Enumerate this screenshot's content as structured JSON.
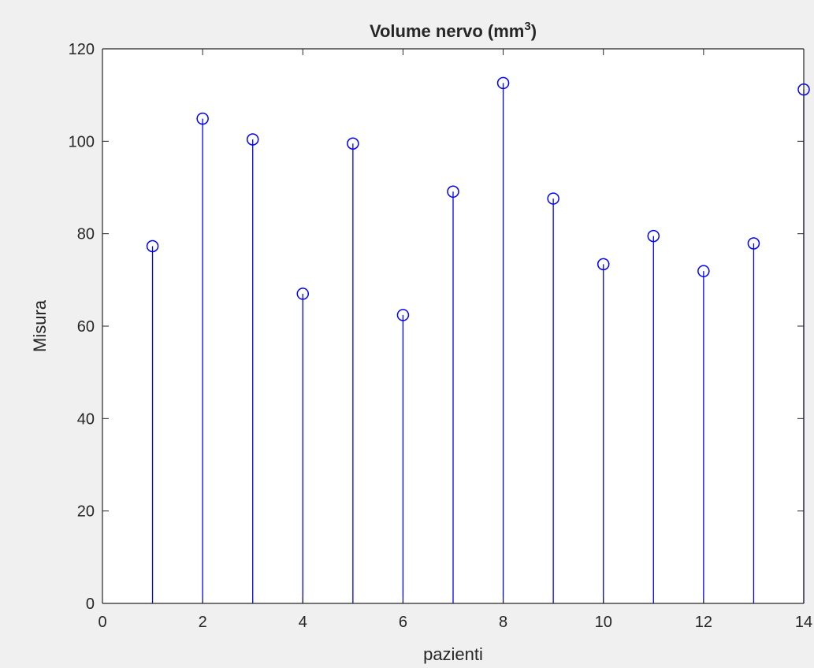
{
  "chart_data": {
    "type": "scatter",
    "subtype": "stem",
    "title": "Volume nervo (mm",
    "title_superscript": "3",
    "title_suffix": ")",
    "xlabel": "pazienti",
    "ylabel": "Misura",
    "xlim": [
      0,
      14
    ],
    "ylim": [
      0,
      120
    ],
    "xticks": [
      "0",
      "2",
      "4",
      "6",
      "8",
      "10",
      "12",
      "14"
    ],
    "yticks": [
      "0",
      "20",
      "40",
      "60",
      "80",
      "100",
      "120"
    ],
    "grid": false,
    "marker": "open-circle",
    "color": "#0000ff",
    "x": [
      1,
      2,
      3,
      4,
      5,
      6,
      7,
      8,
      9,
      10,
      11,
      12,
      13,
      14
    ],
    "y": [
      77.3,
      104.9,
      100.4,
      67.0,
      99.5,
      62.4,
      89.1,
      112.6,
      87.6,
      73.4,
      79.5,
      71.9,
      77.9,
      111.2
    ]
  },
  "colors": {
    "figure_background": "#f0f0f0",
    "axes_background": "#ffffff",
    "axis_color": "#262626",
    "series_color": "#0000ff"
  }
}
